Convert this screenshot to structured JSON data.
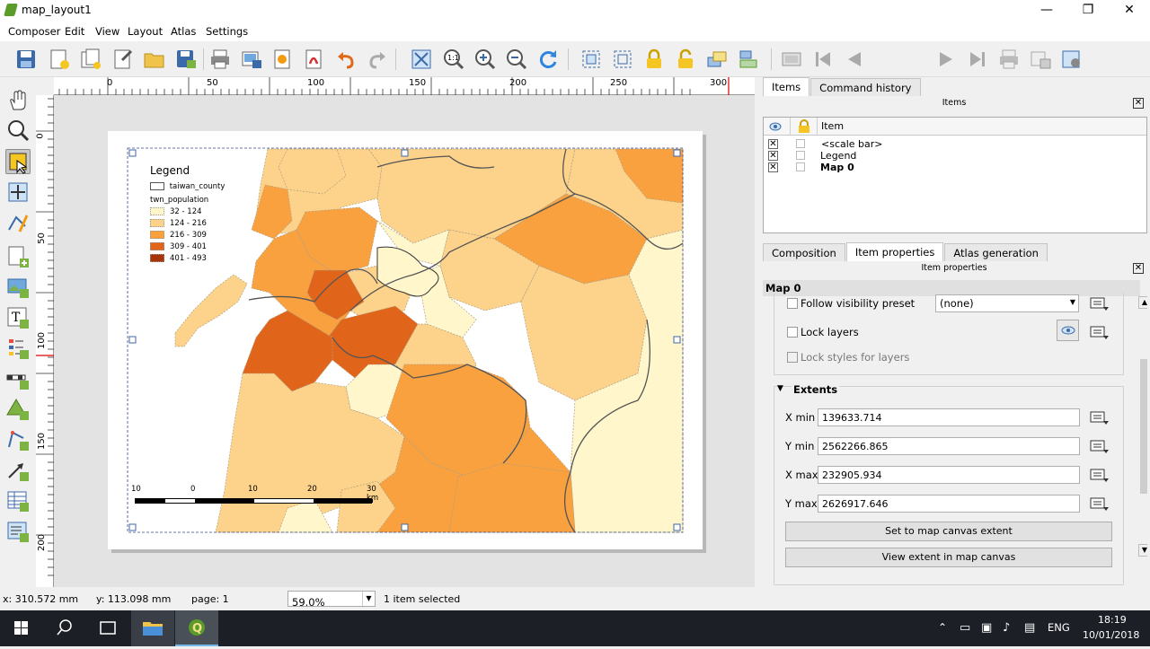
{
  "window": {
    "title": "map_layout1",
    "min": "—",
    "max": "❐",
    "close": "✕"
  },
  "menu": [
    "Composer",
    "Edit",
    "View",
    "Layout",
    "Atlas",
    "Settings"
  ],
  "toolbar": {
    "page_value": "1"
  },
  "ruler": {
    "h_ticks": [
      "0",
      "50",
      "100",
      "150",
      "200",
      "250",
      "300"
    ],
    "v_ticks": [
      "0",
      "50",
      "100",
      "150",
      "200"
    ]
  },
  "map": {
    "legend": {
      "title": "Legend",
      "layer1": "taiwan_county",
      "layer2": "twn_population",
      "classes": [
        {
          "label": "32 - 124",
          "color": "#fff6cc"
        },
        {
          "label": "124 - 216",
          "color": "#fdd28a"
        },
        {
          "label": "216 - 309",
          "color": "#f9a03f"
        },
        {
          "label": "309 - 401",
          "color": "#e0651b"
        },
        {
          "label": "401 - 493",
          "color": "#a8340a"
        }
      ]
    },
    "scalebar": {
      "labels": [
        "10",
        "0",
        "10",
        "20",
        "30 km"
      ]
    }
  },
  "dock": {
    "top_tabs": [
      "Items",
      "Command history"
    ],
    "items_title": "Items",
    "items_header": "Item",
    "items": [
      "<scale bar>",
      "Legend",
      "Map 0"
    ],
    "bottom_tabs": [
      "Composition",
      "Item properties",
      "Atlas generation"
    ],
    "props_title": "Item properties",
    "props": {
      "heading": "Map 0",
      "follow_visibility": "Follow visibility preset",
      "preset_value": "(none)",
      "lock_layers": "Lock layers",
      "lock_styles": "Lock styles for layers",
      "extents_title": "Extents",
      "xmin_label": "X min",
      "xmin": "139633.714",
      "ymin_label": "Y min",
      "ymin": "2562266.865",
      "xmax_label": "X max",
      "xmax": "232905.934",
      "ymax_label": "Y max",
      "ymax": "2626917.646",
      "set_extent_btn": "Set to map canvas extent",
      "view_extent_btn": "View extent in map canvas"
    }
  },
  "status": {
    "x": "x: 310.572 mm",
    "y": "y: 113.098 mm",
    "page": "page: 1",
    "zoom": "59.0%",
    "selection": "1 item selected"
  },
  "taskbar": {
    "lang": "ENG",
    "time": "18:19",
    "date": "10/01/2018"
  }
}
